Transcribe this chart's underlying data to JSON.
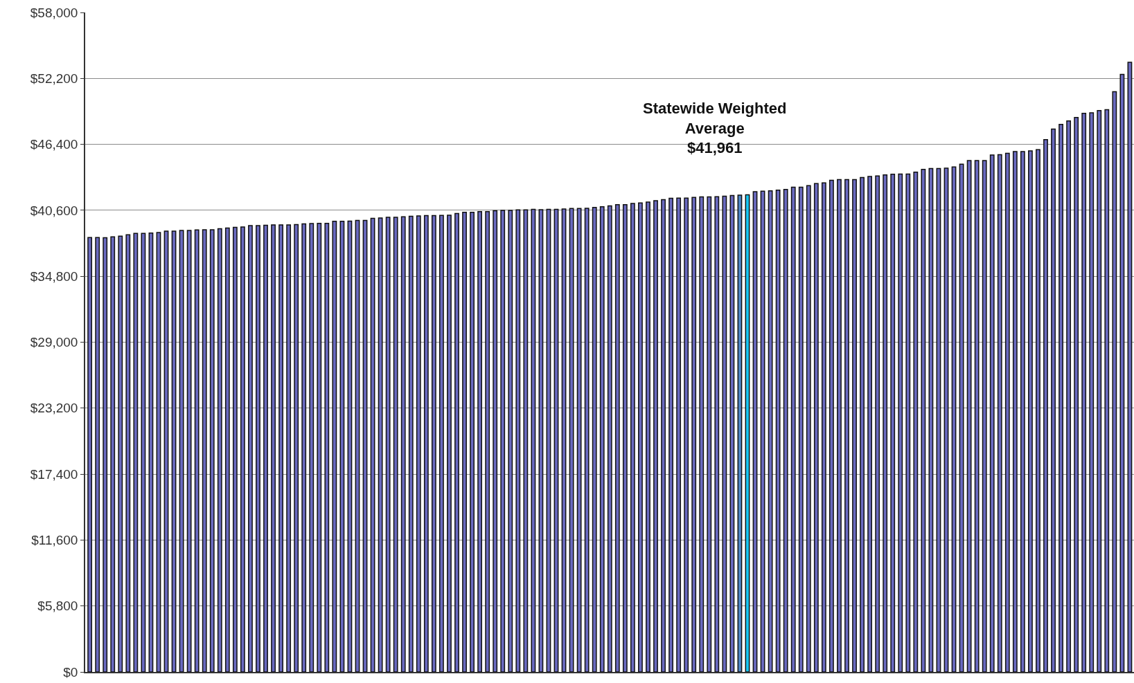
{
  "chart_data": {
    "type": "bar",
    "categories": [
      null,
      null,
      null,
      null,
      null,
      null,
      null,
      null,
      null,
      null,
      null,
      null,
      null,
      null,
      null,
      null,
      null,
      null,
      null,
      null,
      null,
      null,
      null,
      null,
      null,
      null,
      null,
      null,
      null,
      null,
      null,
      null,
      null,
      null,
      null,
      null,
      null,
      null,
      null,
      null,
      null,
      null,
      null,
      null,
      null,
      null,
      null,
      null,
      null,
      null,
      null,
      null,
      null,
      null,
      null,
      null,
      null,
      null,
      null,
      null,
      null,
      null,
      null,
      null,
      null,
      null,
      null,
      null,
      null,
      null,
      null,
      null,
      null,
      null,
      null,
      null,
      null,
      null,
      null,
      null,
      null,
      null,
      null,
      null,
      null,
      null,
      null,
      null,
      null,
      null,
      null,
      null,
      null,
      null,
      null,
      null,
      null,
      null,
      null,
      null,
      null,
      null,
      null,
      null,
      null,
      null,
      null,
      null,
      null,
      null,
      null,
      null,
      null,
      null,
      null,
      null,
      null,
      null,
      null,
      null,
      null,
      null,
      null,
      null,
      null,
      null,
      null,
      null,
      null,
      null,
      null,
      null,
      null,
      null,
      null,
      null,
      null
    ],
    "values": [
      38210,
      38210,
      38190,
      38270,
      38330,
      38450,
      38570,
      38570,
      38600,
      38650,
      38770,
      38770,
      38830,
      38830,
      38870,
      38890,
      38890,
      38980,
      39040,
      39100,
      39140,
      39260,
      39260,
      39280,
      39320,
      39320,
      39320,
      39340,
      39400,
      39440,
      39460,
      39460,
      39630,
      39630,
      39650,
      39710,
      39710,
      39890,
      39930,
      39990,
      39990,
      40030,
      40070,
      40110,
      40130,
      40130,
      40150,
      40170,
      40320,
      40420,
      40420,
      40480,
      40480,
      40560,
      40600,
      40600,
      40640,
      40640,
      40680,
      40660,
      40680,
      40680,
      40720,
      40760,
      40760,
      40780,
      40860,
      40920,
      40990,
      41090,
      41090,
      41210,
      41250,
      41330,
      41450,
      41530,
      41660,
      41680,
      41680,
      41740,
      41780,
      41780,
      41800,
      41840,
      41900,
      41940,
      41961,
      42230,
      42280,
      42320,
      42380,
      42440,
      42640,
      42640,
      42770,
      42950,
      43010,
      43240,
      43300,
      43300,
      43300,
      43480,
      43580,
      43620,
      43710,
      43770,
      43790,
      43790,
      43950,
      44200,
      44280,
      44280,
      44300,
      44420,
      44660,
      44970,
      44970,
      44970,
      45470,
      45500,
      45620,
      45770,
      45770,
      45830,
      45930,
      46820,
      47750,
      48160,
      48460,
      48770,
      49130,
      49170,
      49370,
      49450,
      51030,
      52560,
      53620
    ],
    "colors": [
      "#6a6ac0",
      "#6a6ac0",
      "#6a6ac0",
      "#6a6ac0",
      "#6a6ac0",
      "#6a6ac0",
      "#6a6ac0",
      "#6a6ac0",
      "#6a6ac0",
      "#6a6ac0",
      "#6a6ac0",
      "#6a6ac0",
      "#6a6ac0",
      "#6a6ac0",
      "#6a6ac0",
      "#6a6ac0",
      "#6a6ac0",
      "#6a6ac0",
      "#6a6ac0",
      "#6a6ac0",
      "#6a6ac0",
      "#6a6ac0",
      "#6a6ac0",
      "#6a6ac0",
      "#6a6ac0",
      "#6a6ac0",
      "#6a6ac0",
      "#6a6ac0",
      "#6a6ac0",
      "#6a6ac0",
      "#6a6ac0",
      "#6a6ac0",
      "#6a6ac0",
      "#6a6ac0",
      "#6a6ac0",
      "#6a6ac0",
      "#6a6ac0",
      "#6a6ac0",
      "#6a6ac0",
      "#6a6ac0",
      "#6a6ac0",
      "#6a6ac0",
      "#6a6ac0",
      "#6a6ac0",
      "#6a6ac0",
      "#6a6ac0",
      "#6a6ac0",
      "#6a6ac0",
      "#6a6ac0",
      "#6a6ac0",
      "#6a6ac0",
      "#6a6ac0",
      "#6a6ac0",
      "#6a6ac0",
      "#6a6ac0",
      "#6a6ac0",
      "#6a6ac0",
      "#6a6ac0",
      "#6a6ac0",
      "#6a6ac0",
      "#6a6ac0",
      "#6a6ac0",
      "#6a6ac0",
      "#6a6ac0",
      "#6a6ac0",
      "#6a6ac0",
      "#6a6ac0",
      "#6a6ac0",
      "#6a6ac0",
      "#6a6ac0",
      "#6a6ac0",
      "#6a6ac0",
      "#6a6ac0",
      "#6a6ac0",
      "#6a6ac0",
      "#6a6ac0",
      "#6a6ac0",
      "#6a6ac0",
      "#6a6ac0",
      "#6a6ac0",
      "#6a6ac0",
      "#6a6ac0",
      "#6a6ac0",
      "#6a6ac0",
      "#6a6ac0",
      "#4f86c6",
      "#19c6f2",
      "#6a6ac0",
      "#6a6ac0",
      "#6a6ac0",
      "#6a6ac0",
      "#6a6ac0",
      "#6a6ac0",
      "#6a6ac0",
      "#6a6ac0",
      "#6a6ac0",
      "#6a6ac0",
      "#6a6ac0",
      "#6a6ac0",
      "#6a6ac0",
      "#6a6ac0",
      "#6a6ac0",
      "#6a6ac0",
      "#6a6ac0",
      "#6a6ac0",
      "#6a6ac0",
      "#6a6ac0",
      "#6a6ac0",
      "#6a6ac0",
      "#6a6ac0",
      "#6a6ac0",
      "#6a6ac0",
      "#6a6ac0",
      "#6a6ac0",
      "#6a6ac0",
      "#6a6ac0",
      "#6a6ac0",
      "#6a6ac0",
      "#6a6ac0",
      "#6a6ac0",
      "#6a6ac0",
      "#6a6ac0",
      "#6a6ac0",
      "#6a6ac0",
      "#6a6ac0",
      "#6a6ac0",
      "#6a6ac0",
      "#6a6ac0",
      "#6a6ac0",
      "#6a6ac0",
      "#6a6ac0",
      "#6a6ac0",
      "#6a6ac0",
      "#6a6ac0",
      "#6a6ac0",
      "#6a6ac0",
      "#6a6ac0"
    ],
    "annotations": [
      "Statewide Weighted\nAverage\n$41,961"
    ],
    "ylim": [
      0,
      58000
    ],
    "yticks": [
      {
        "value": 0,
        "label": "$0"
      },
      {
        "value": 5800,
        "label": "$5,800"
      },
      {
        "value": 11600,
        "label": "$11,600"
      },
      {
        "value": 17400,
        "label": "$17,400"
      },
      {
        "value": 23200,
        "label": "$23,200"
      },
      {
        "value": 29000,
        "label": "$29,000"
      },
      {
        "value": 34800,
        "label": "$34,800"
      },
      {
        "value": 40600,
        "label": "$40,600"
      },
      {
        "value": 46400,
        "label": "$46,400"
      },
      {
        "value": 52200,
        "label": "$52,200"
      },
      {
        "value": 58000,
        "label": "$58,000"
      }
    ],
    "grid": "y"
  }
}
